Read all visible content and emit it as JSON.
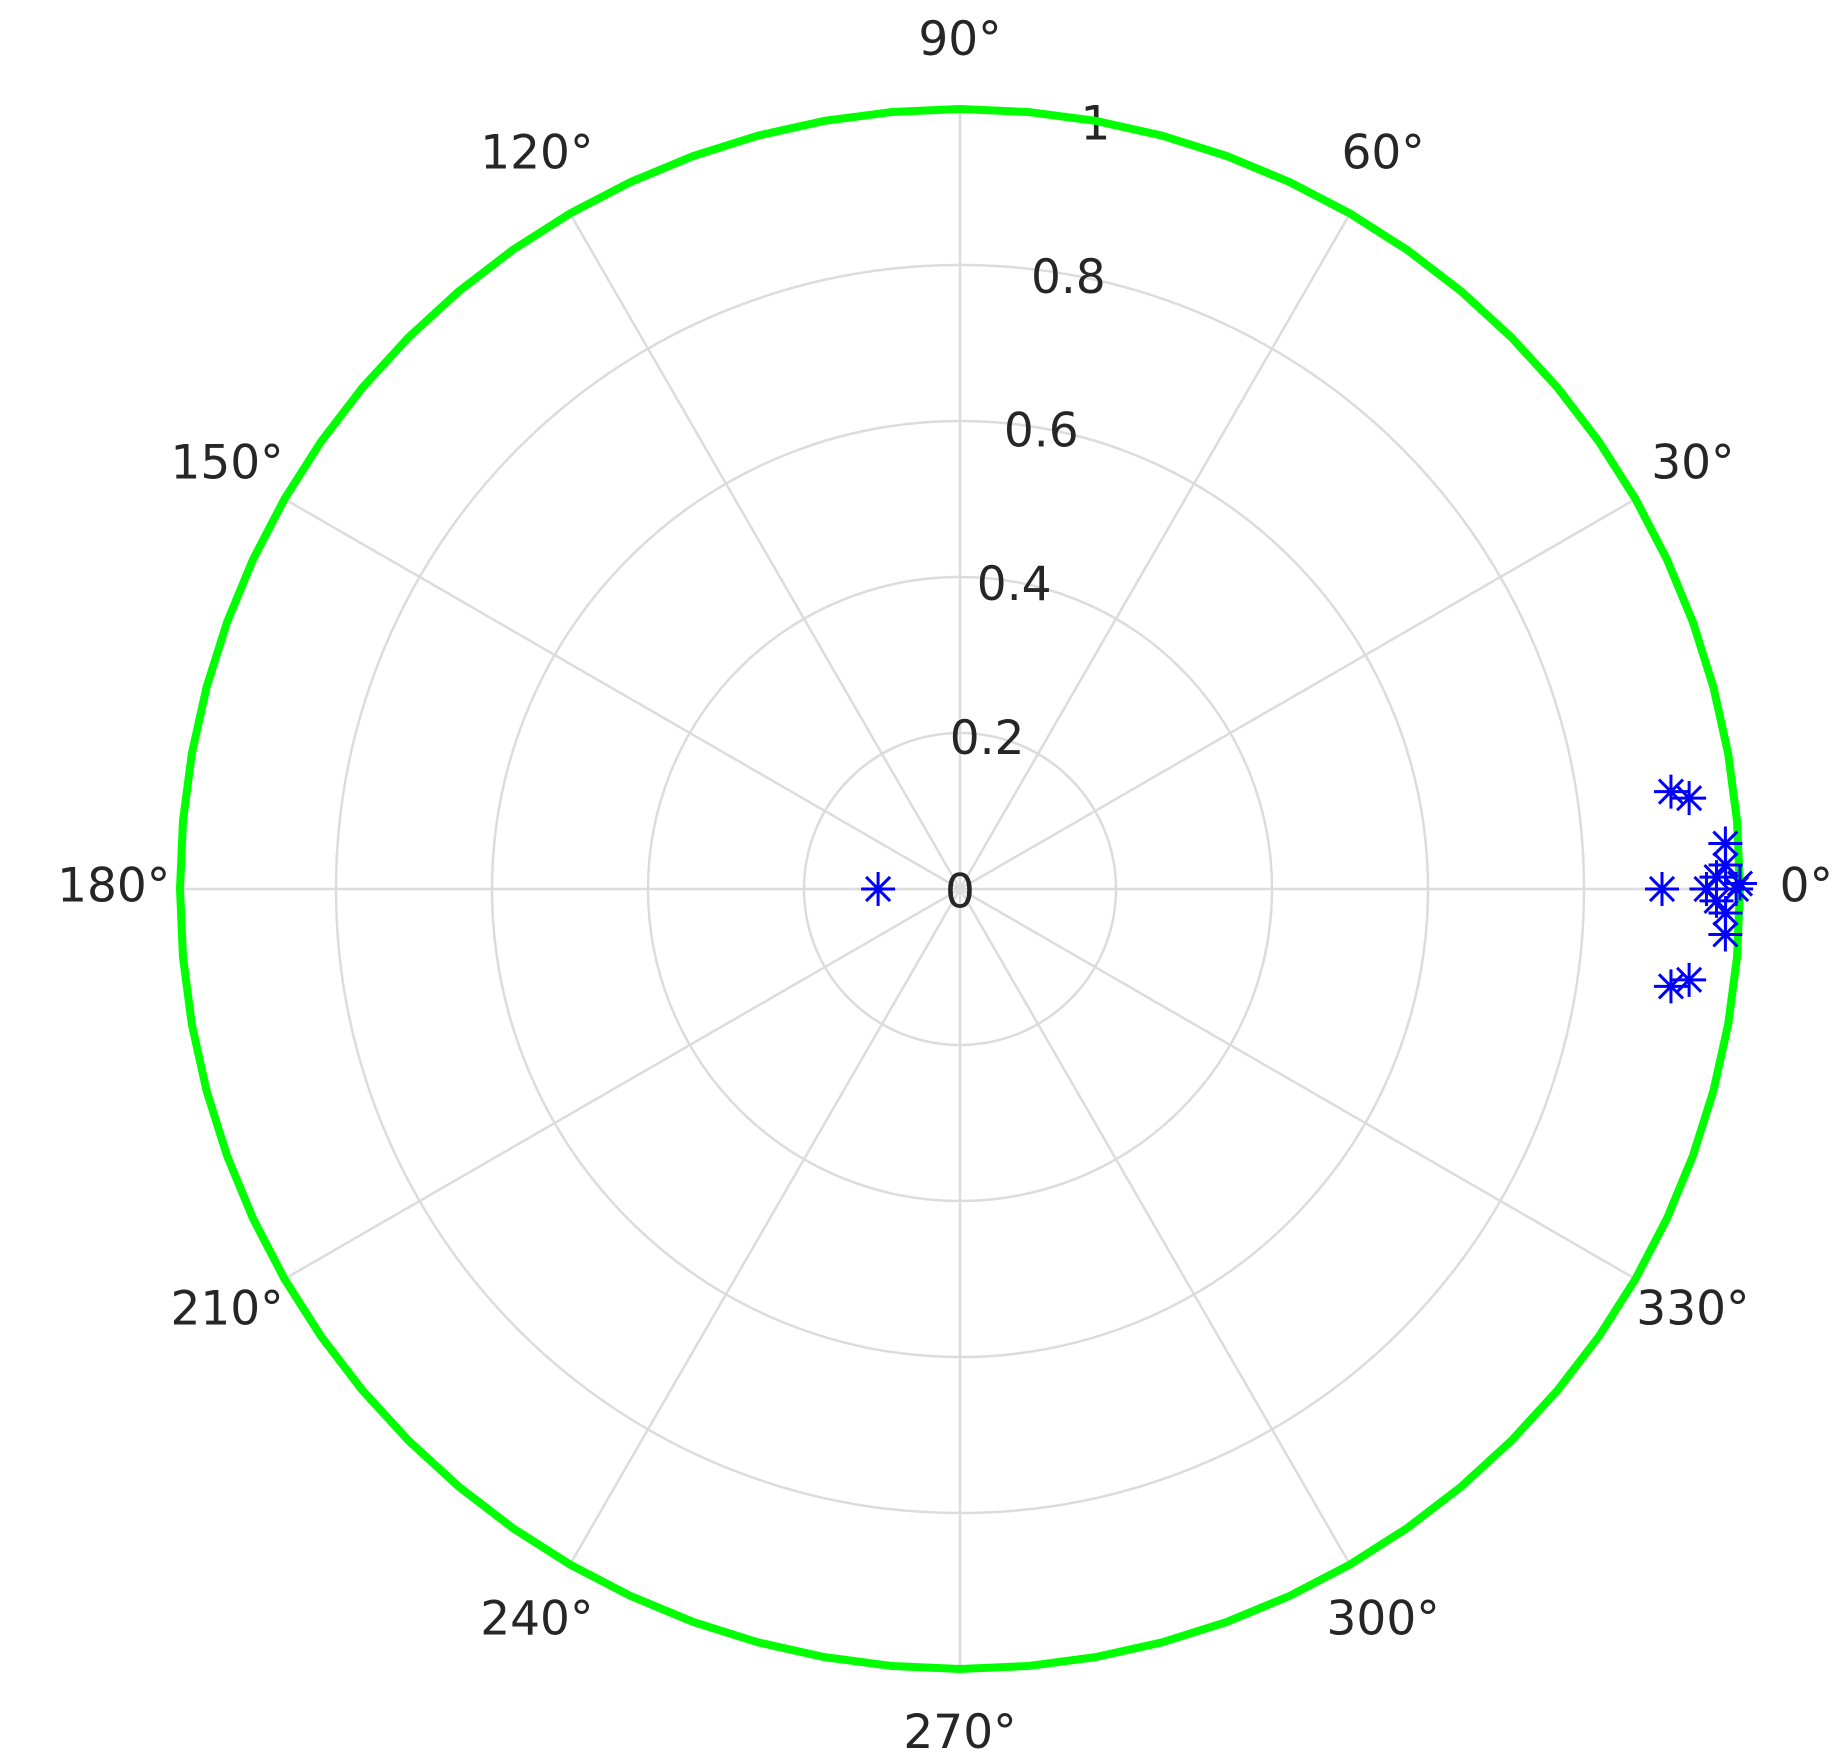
{
  "chart_data": {
    "type": "polar",
    "rlim": [
      0,
      1
    ],
    "rticks": [
      0,
      0.2,
      0.4,
      0.6,
      0.8,
      1
    ],
    "thetaticks": [
      {
        "value": 0,
        "label": "0°"
      },
      {
        "value": 30,
        "label": "30°"
      },
      {
        "value": 60,
        "label": "60°"
      },
      {
        "value": 90,
        "label": "90°"
      },
      {
        "value": 120,
        "label": "120°"
      },
      {
        "value": 150,
        "label": "150°"
      },
      {
        "value": 180,
        "label": "180°"
      },
      {
        "value": 210,
        "label": "210°"
      },
      {
        "value": 240,
        "label": "240°"
      },
      {
        "value": 270,
        "label": "270°"
      },
      {
        "value": 300,
        "label": "300°"
      },
      {
        "value": 330,
        "label": "330°"
      }
    ],
    "grid": true,
    "series": [
      {
        "color": "#0000ff",
        "marker": "asterisk",
        "theta": [
          7.8,
          7.1,
          352.2,
          352.9,
          0,
          3.4,
          356.6,
          1.8,
          358.2,
          0,
          0.9,
          359.1,
          0,
          0.4,
          180
        ],
        "r": [
          0.92,
          0.942,
          0.92,
          0.942,
          0.9,
          0.983,
          0.983,
          0.982,
          0.982,
          0.957,
          0.97,
          0.97,
          0.995,
          1.0,
          0.105
        ]
      },
      {
        "color": "#00ff00",
        "marker": "line",
        "theta": [
          0,
          5,
          10,
          15,
          20,
          25,
          30,
          35,
          40,
          45,
          50,
          55,
          60,
          65,
          70,
          75,
          80,
          85,
          90,
          95,
          100,
          105,
          110,
          115,
          120,
          125,
          130,
          135,
          140,
          145,
          150,
          155,
          160,
          165,
          170,
          175,
          180,
          185,
          190,
          195,
          200,
          205,
          210,
          215,
          220,
          225,
          230,
          235,
          240,
          245,
          250,
          255,
          260,
          265,
          270,
          275,
          280,
          285,
          290,
          295,
          300,
          305,
          310,
          315,
          320,
          325,
          330,
          335,
          340,
          345,
          350,
          355,
          360
        ],
        "r": [
          1,
          1,
          1,
          1,
          1,
          1,
          1,
          1,
          1,
          1,
          1,
          1,
          1,
          1,
          1,
          1,
          1,
          1,
          1,
          1,
          1,
          1,
          1,
          1,
          1,
          1,
          1,
          1,
          1,
          1,
          1,
          1,
          1,
          1,
          1,
          1,
          1,
          1,
          1,
          1,
          1,
          1,
          1,
          1,
          1,
          1,
          1,
          1,
          1,
          1,
          1,
          1,
          1,
          1,
          1,
          1,
          1,
          1,
          1,
          1,
          1,
          1,
          1,
          1,
          1,
          1,
          1,
          1,
          1,
          1,
          1,
          1,
          1
        ]
      }
    ]
  }
}
